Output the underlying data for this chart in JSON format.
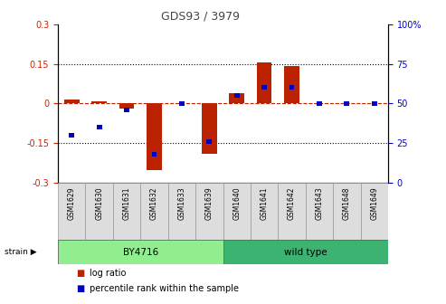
{
  "title": "GDS93 / 3979",
  "samples": [
    "GSM1629",
    "GSM1630",
    "GSM1631",
    "GSM1632",
    "GSM1633",
    "GSM1639",
    "GSM1640",
    "GSM1641",
    "GSM1642",
    "GSM1643",
    "GSM1648",
    "GSM1649"
  ],
  "log_ratio": [
    0.015,
    0.008,
    -0.02,
    -0.255,
    0.0,
    -0.19,
    0.04,
    0.157,
    0.14,
    0.0,
    0.0,
    0.0
  ],
  "percentile_rank": [
    30,
    35,
    46,
    18,
    50,
    26,
    55,
    60,
    60,
    50,
    50,
    50
  ],
  "ylim_left": [
    -0.3,
    0.3
  ],
  "ylim_right": [
    0,
    100
  ],
  "yticks_left": [
    -0.3,
    -0.15,
    0.0,
    0.15,
    0.3
  ],
  "yticks_right": [
    0,
    25,
    50,
    75,
    100
  ],
  "ytick_labels_left": [
    "-0.3",
    "-0.15",
    "0",
    "0.15",
    "0.3"
  ],
  "ytick_labels_right": [
    "0",
    "25",
    "50",
    "75",
    "100%"
  ],
  "strain_groups": [
    {
      "label": "BY4716",
      "start": 0,
      "end": 5,
      "color": "#90EE90"
    },
    {
      "label": "wild type",
      "start": 6,
      "end": 11,
      "color": "#3CB371"
    }
  ],
  "strain_label": "strain",
  "log_ratio_color": "#BB2200",
  "percentile_color": "#0000BB",
  "bar_width": 0.55,
  "dotted_line_color": "#000000",
  "zero_line_color": "#BB2200",
  "bg_color": "#FFFFFF",
  "plot_bg_color": "#FFFFFF",
  "tick_label_color_left": "#CC2200",
  "tick_label_color_right": "#0000CC",
  "xlabel_bg": "#DDDDDD"
}
